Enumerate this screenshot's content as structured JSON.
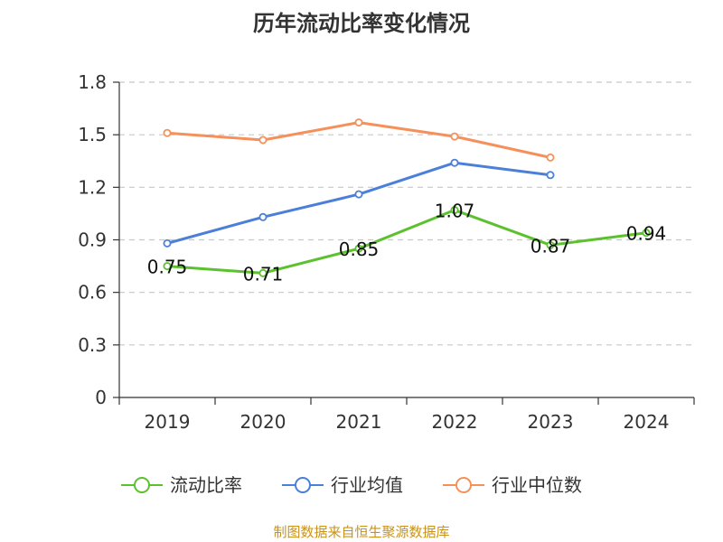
{
  "chart_data": {
    "type": "line",
    "title": "历年流动比率变化情况",
    "categories": [
      "2019",
      "2020",
      "2021",
      "2022",
      "2023",
      "2024"
    ],
    "y_ticks": [
      "0",
      "0.3",
      "0.6",
      "0.9",
      "1.2",
      "1.5",
      "1.8"
    ],
    "ylim": [
      0,
      1.8
    ],
    "grid": "horizontal dashed",
    "legend_position": "bottom",
    "series": [
      {
        "name": "流动比率",
        "color": "#5cc12e",
        "values": [
          0.75,
          0.71,
          0.85,
          1.07,
          0.87,
          0.94
        ],
        "labels": [
          "0.75",
          "0.71",
          "0.85",
          "1.07",
          "0.87",
          "0.94"
        ],
        "show_labels": true
      },
      {
        "name": "行业均值",
        "color": "#4b7fd8",
        "values": [
          0.88,
          1.03,
          1.16,
          1.34,
          1.27,
          null
        ],
        "show_labels": false
      },
      {
        "name": "行业中位数",
        "color": "#f5905a",
        "values": [
          1.51,
          1.47,
          1.57,
          1.49,
          1.37,
          null
        ],
        "show_labels": false
      }
    ],
    "source": "制图数据来自恒生聚源数据库"
  }
}
